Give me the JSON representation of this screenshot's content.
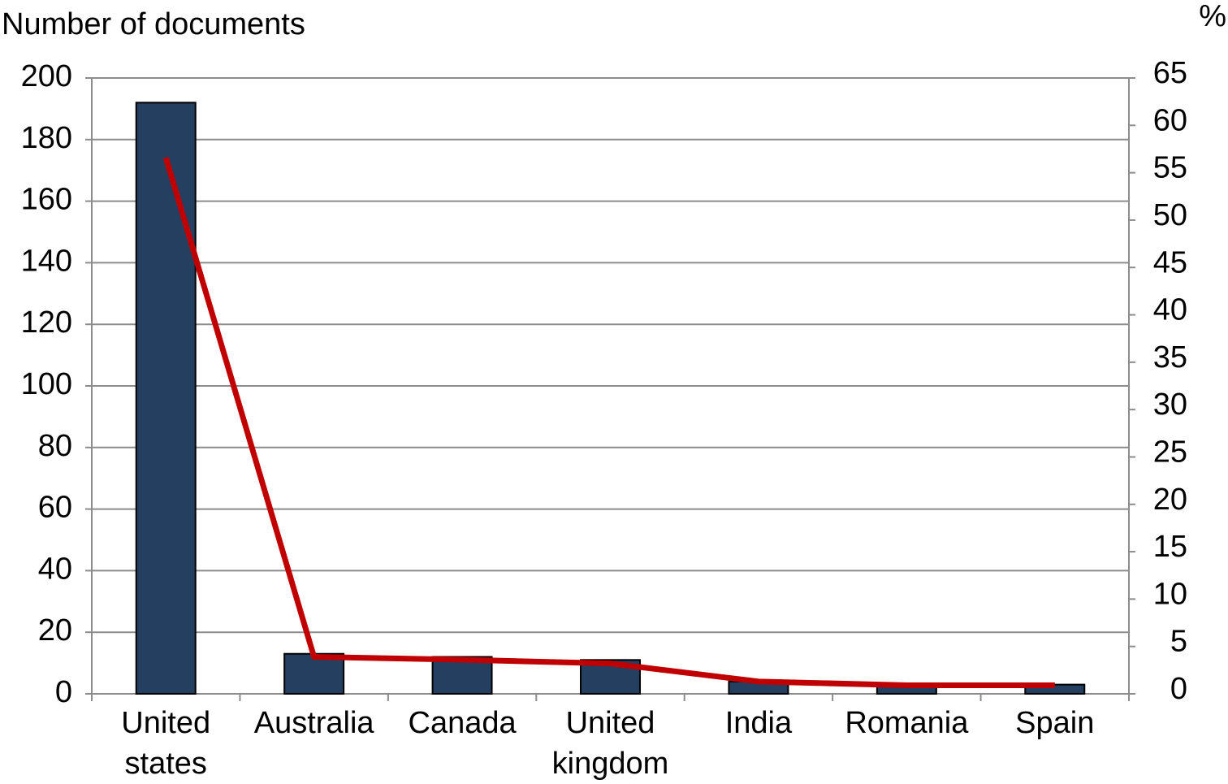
{
  "chart_data": {
    "type": "bar-line",
    "y_label": "Number of documents",
    "y2_label": "%",
    "categories": [
      "United states",
      "Australia",
      "Canada",
      "United kingdom",
      "India",
      "Romania",
      "Spain"
    ],
    "series": [
      {
        "type": "bar",
        "color": "#243f60",
        "values": [
          192,
          13,
          12,
          11,
          4,
          3,
          3
        ]
      },
      {
        "type": "line",
        "axis": "y2",
        "color": "#c00000",
        "values": [
          56.6,
          3.9,
          3.6,
          3.2,
          1.3,
          0.9,
          0.9
        ]
      }
    ],
    "ylim": [
      0,
      200
    ],
    "yticks": [
      0,
      20,
      40,
      60,
      80,
      100,
      120,
      140,
      160,
      180,
      200
    ],
    "y2lim": [
      0,
      65
    ],
    "y2ticks": [
      0,
      5,
      10,
      15,
      20,
      25,
      30,
      35,
      40,
      45,
      50,
      55,
      60,
      65
    ],
    "grid": true
  }
}
